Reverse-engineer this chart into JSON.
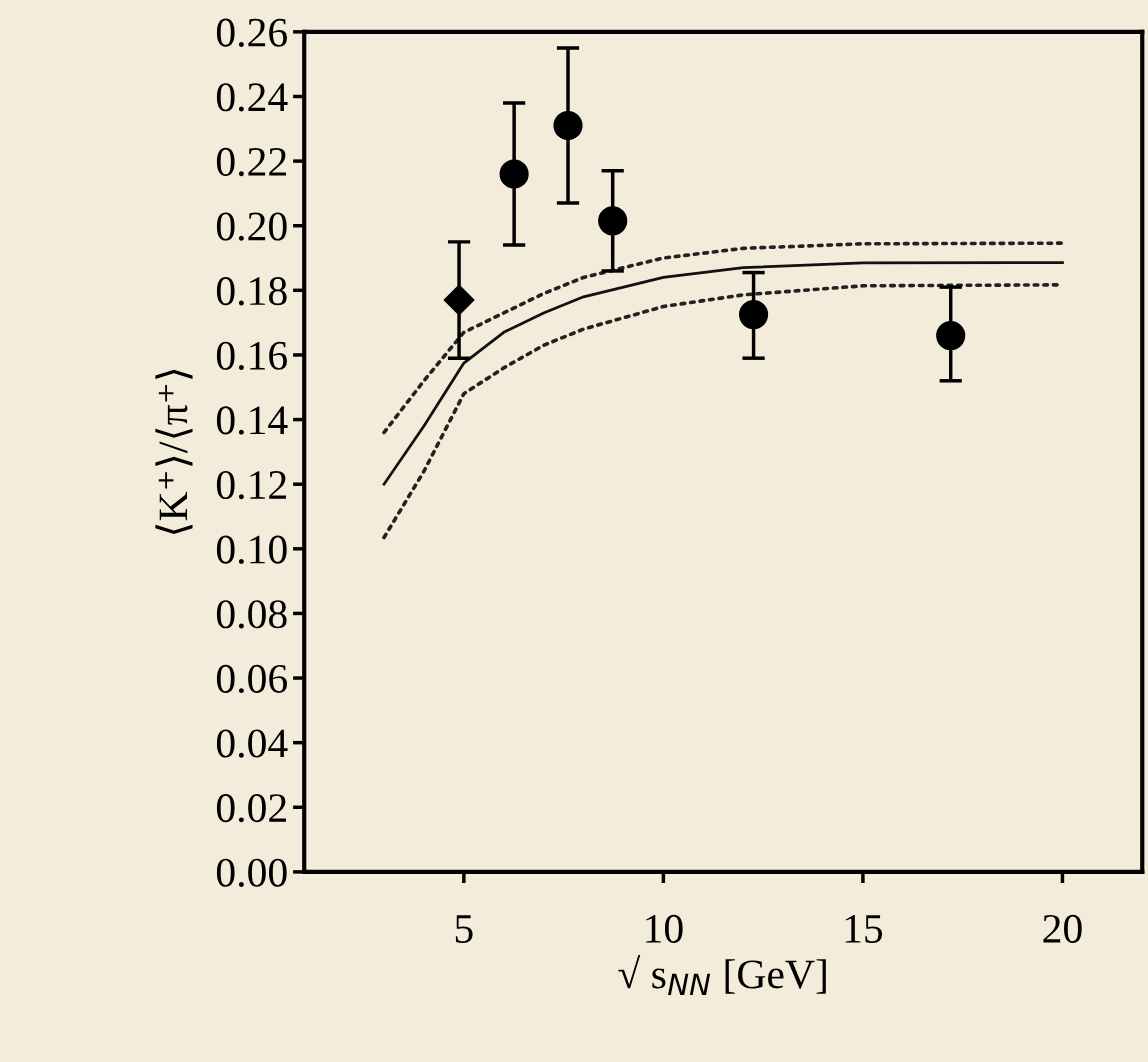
{
  "chart_data": {
    "type": "scatter",
    "xlabel": "√ s$_{NN}$ [GeV]",
    "ylabel": "⟨K⁺⟩/⟨π⁺⟩",
    "xlim": [
      1,
      22
    ],
    "xticks": [
      5,
      10,
      15,
      20
    ],
    "ylim": [
      0,
      0.26
    ],
    "yticks": [
      {
        "value": 0,
        "label": "0.00"
      },
      0.02,
      0.04,
      0.06,
      0.08,
      {
        "value": 0.1,
        "label": "0.10"
      },
      0.12,
      0.14,
      0.16,
      0.18,
      {
        "value": 0.2,
        "label": "0.20"
      },
      0.22,
      0.24,
      0.26
    ],
    "grid": false,
    "legend": false,
    "series": [
      {
        "type": "line",
        "color": "#111111",
        "line_style": "solid",
        "marker": "none",
        "x": [
          3,
          4,
          5,
          6,
          7,
          8,
          10,
          12,
          15,
          20
        ],
        "values": [
          0.12,
          0.138,
          0.1575,
          0.167,
          0.173,
          0.178,
          0.184,
          0.187,
          0.1885,
          0.1886
        ]
      },
      {
        "type": "line",
        "color": "#222222",
        "line_style": "dotted",
        "marker": "none",
        "x": [
          3,
          4,
          5,
          6,
          7,
          8,
          10,
          12,
          15,
          20
        ],
        "values": [
          0.136,
          0.152,
          0.167,
          0.173,
          0.179,
          0.184,
          0.19,
          0.193,
          0.1944,
          0.1946
        ]
      },
      {
        "type": "line",
        "color": "#222222",
        "line_style": "dotted",
        "marker": "none",
        "x": [
          3,
          4,
          5,
          6,
          7,
          8,
          10,
          12,
          15,
          20
        ],
        "values": [
          0.1035,
          0.124,
          0.148,
          0.156,
          0.163,
          0.168,
          0.175,
          0.1786,
          0.1814,
          0.1817
        ]
      },
      {
        "color": "#000000",
        "marker": "diamond",
        "x": [
          4.88
        ],
        "values": [
          0.177
        ],
        "errors": [
          [
            0.159,
            0.195
          ]
        ]
      },
      {
        "color": "#000000",
        "marker": "circle",
        "x": [
          6.26,
          7.61,
          8.73,
          12.26,
          17.2
        ],
        "values": [
          0.216,
          0.231,
          0.2015,
          0.1725,
          0.166
        ],
        "errors": [
          [
            0.194,
            0.238
          ],
          [
            0.207,
            0.255
          ],
          [
            0.186,
            0.217
          ],
          [
            0.159,
            0.1855
          ],
          [
            0.152,
            0.181
          ]
        ]
      }
    ]
  }
}
